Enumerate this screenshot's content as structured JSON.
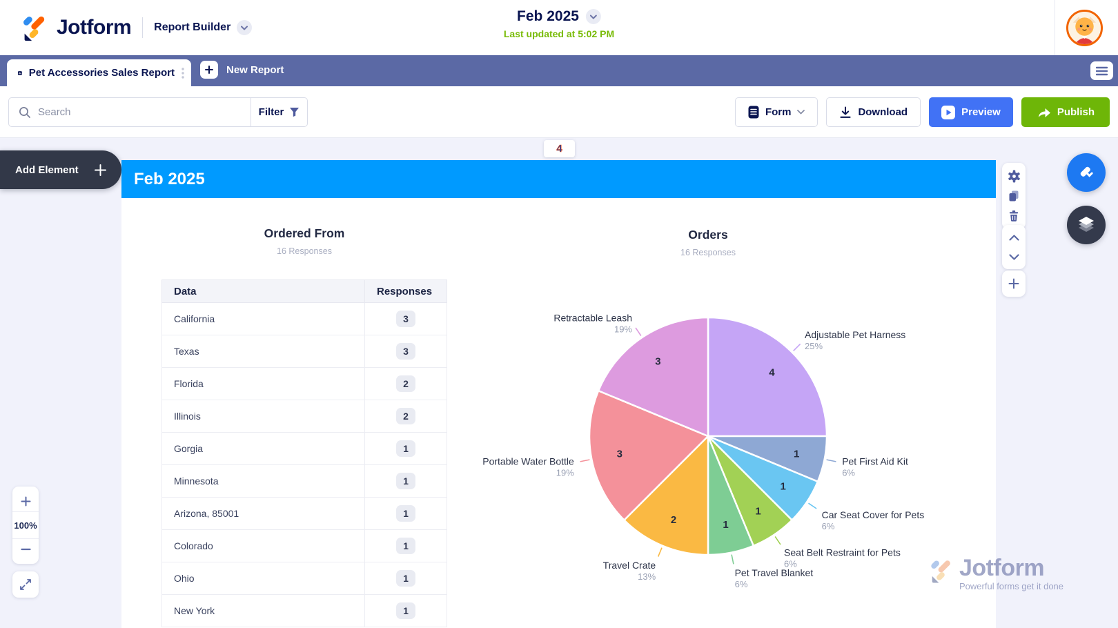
{
  "header": {
    "brand": "Jotform",
    "product": "Report Builder",
    "title": "Feb 2025",
    "subtitle": "Last updated at 5:02 PM"
  },
  "tabs": {
    "active": "Pet Accessories Sales Report",
    "new_report": "New Report"
  },
  "toolbar": {
    "search_placeholder": "Search",
    "filter_label": "Filter",
    "form_label": "Form",
    "download_label": "Download",
    "preview_label": "Preview",
    "publish_label": "Publish"
  },
  "canvas": {
    "page_indicator": "4",
    "add_element_label": "Add Element",
    "section_title": "Feb 2025",
    "zoom_level": "100%"
  },
  "table_widget": {
    "title": "Ordered From",
    "subtitle": "16 Responses",
    "columns": [
      "Data",
      "Responses"
    ],
    "rows": [
      [
        "California",
        "3"
      ],
      [
        "Texas",
        "3"
      ],
      [
        "Florida",
        "2"
      ],
      [
        "Illinois",
        "2"
      ],
      [
        "Gorgia",
        "1"
      ],
      [
        "Minnesota",
        "1"
      ],
      [
        "Arizona, 85001",
        "1"
      ],
      [
        "Colorado",
        "1"
      ],
      [
        "Ohio",
        "1"
      ],
      [
        "New York",
        "1"
      ]
    ]
  },
  "chart_data": {
    "type": "pie",
    "title": "Orders",
    "subtitle": "16 Responses",
    "total_responses": 16,
    "start_angle_deg": 0,
    "direction": "clockwise",
    "slices": [
      {
        "label": "Adjustable Pet Harness",
        "value": 4,
        "percent": "25%",
        "color": "#c5a5f6"
      },
      {
        "label": "Pet First Aid Kit",
        "value": 1,
        "percent": "6%",
        "color": "#8ea8d4"
      },
      {
        "label": "Car Seat Cover for Pets",
        "value": 1,
        "percent": "6%",
        "color": "#6ac6f2"
      },
      {
        "label": "Seat Belt Restraint for Pets",
        "value": 1,
        "percent": "6%",
        "color": "#a2d155"
      },
      {
        "label": "Pet Travel Blanket",
        "value": 1,
        "percent": "6%",
        "color": "#7ecd94"
      },
      {
        "label": "Travel Crate",
        "value": 2,
        "percent": "13%",
        "color": "#fab943"
      },
      {
        "label": "Portable Water Bottle",
        "value": 3,
        "percent": "19%",
        "color": "#f4919a"
      },
      {
        "label": "Retractable Leash",
        "value": 3,
        "percent": "19%",
        "color": "#dd9bdf"
      }
    ]
  },
  "watermark": {
    "brand": "Jotform",
    "tagline": "Powerful forms get it done"
  },
  "colors": {
    "brand_navy": "#0a1551",
    "tabbar_indigo": "#5b69a5",
    "section_header_blue": "#009aff",
    "preview_blue": "#4172f5",
    "publish_green": "#6eb608",
    "updated_green": "#78bb07",
    "canvas_lavender": "#f1f2fb",
    "logo_orange": "#ff6100",
    "logo_yellow": "#ffb629",
    "logo_blue": "#2f8df0"
  }
}
